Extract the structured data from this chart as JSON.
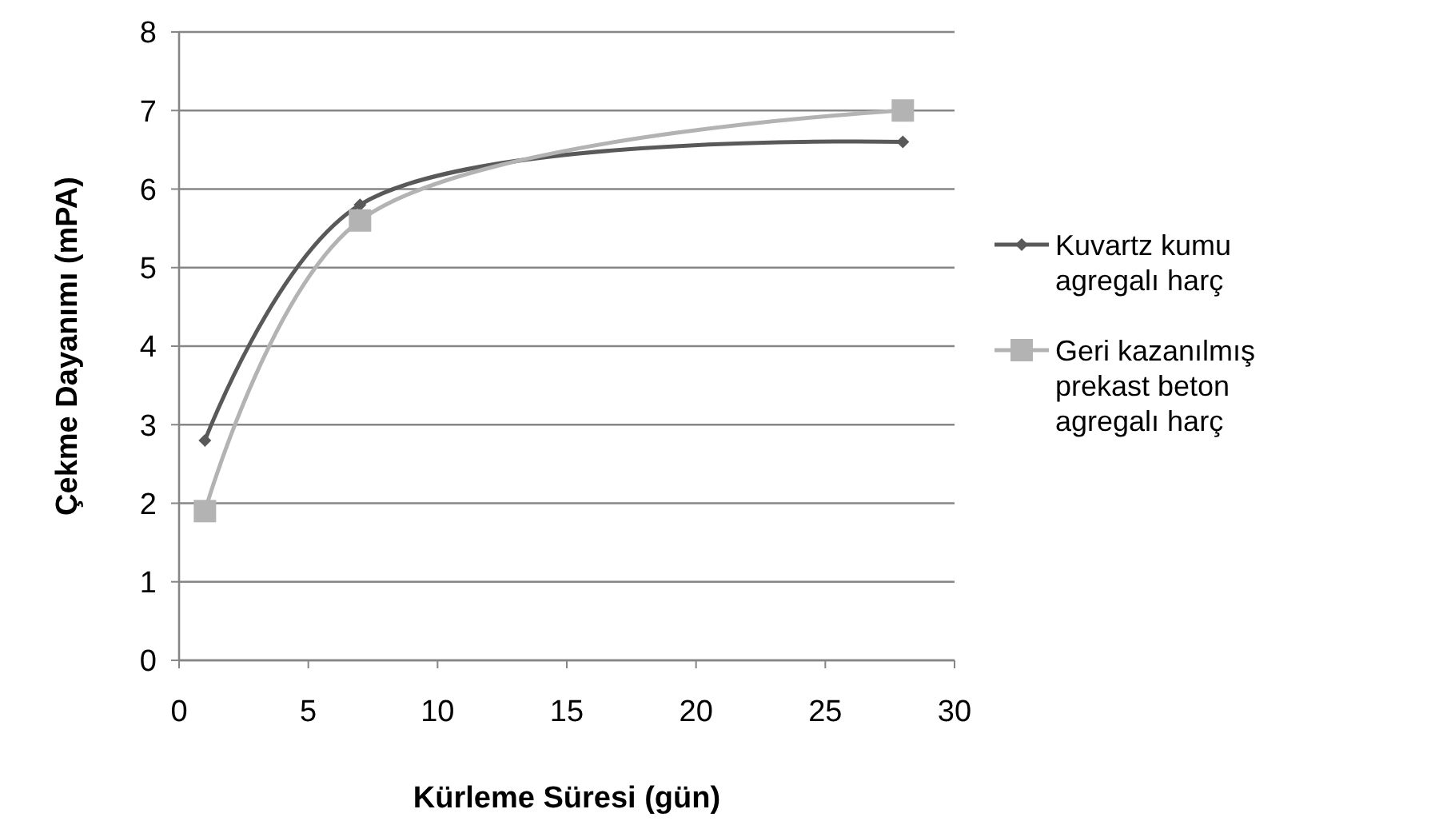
{
  "chart_data": {
    "type": "line",
    "xlabel": "Kürleme Süresi (gün)",
    "ylabel": "Çekme Dayanımı (mPA)",
    "x": [
      1,
      7,
      28
    ],
    "series": [
      {
        "name": "Kuvartz kumu agregalı harç",
        "color": "#595959",
        "values": [
          2.8,
          5.8,
          6.6
        ],
        "marker": "diamond"
      },
      {
        "name": "Geri kazanılmış prekast beton agregalı harç",
        "color": "#b3b3b3",
        "values": [
          1.9,
          5.6,
          7.0
        ],
        "marker": "square"
      }
    ],
    "xlim": [
      0,
      30
    ],
    "xticks": [
      0,
      5,
      10,
      15,
      20,
      25,
      30
    ],
    "ylim": [
      0,
      8
    ],
    "yticks": [
      0,
      1,
      2,
      3,
      4,
      5,
      6,
      7,
      8
    ],
    "grid": "y",
    "legend": "right",
    "line_style": "solid"
  }
}
